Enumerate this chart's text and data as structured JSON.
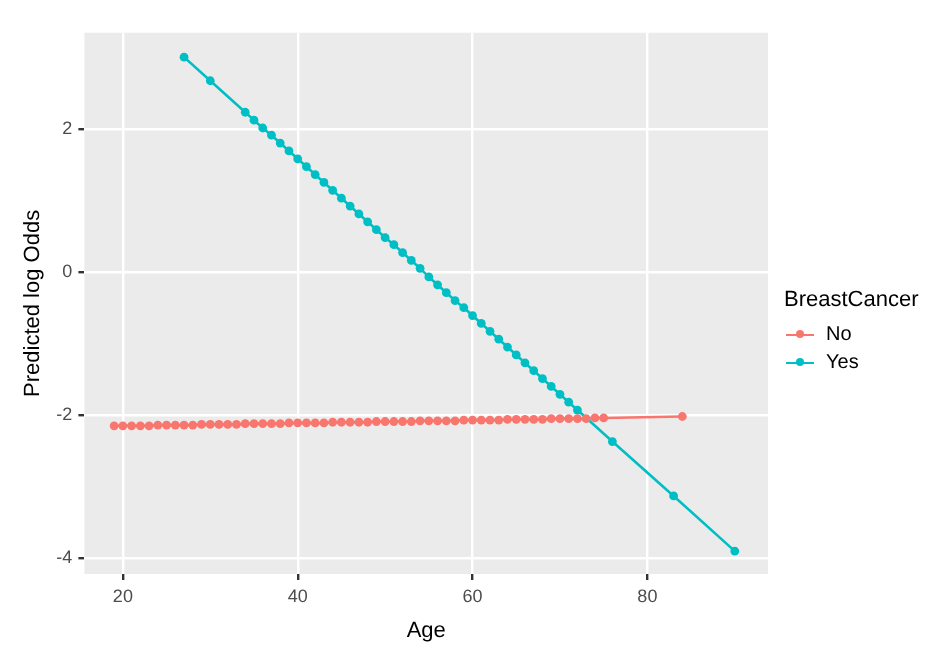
{
  "chart_data": {
    "type": "line",
    "xlabel": "Age",
    "ylabel": "Predicted log Odds",
    "legend_title": "BreastCancer",
    "legend": "right",
    "grid": true,
    "marker": "circle",
    "line_style": "solid",
    "xlim": [
      15.6,
      93.8
    ],
    "xticks": [
      20,
      40,
      60,
      80
    ],
    "ylim": [
      -4.22,
      3.34
    ],
    "yticks": [
      -4,
      -2,
      0,
      2
    ],
    "series": [
      {
        "name": "No",
        "color": "#f8766d",
        "x": [
          19,
          20,
          21,
          22,
          23,
          24,
          25,
          26,
          27,
          28,
          29,
          30,
          31,
          32,
          33,
          34,
          35,
          36,
          37,
          38,
          39,
          40,
          41,
          42,
          43,
          44,
          45,
          46,
          47,
          48,
          49,
          50,
          51,
          52,
          53,
          54,
          55,
          56,
          57,
          58,
          59,
          60,
          61,
          62,
          63,
          64,
          65,
          66,
          67,
          68,
          69,
          70,
          71,
          72,
          73,
          74,
          75,
          84
        ],
        "values": [
          -2.15,
          -2.15,
          -2.15,
          -2.15,
          -2.15,
          -2.14,
          -2.14,
          -2.14,
          -2.14,
          -2.14,
          -2.13,
          -2.13,
          -2.13,
          -2.13,
          -2.13,
          -2.12,
          -2.12,
          -2.12,
          -2.12,
          -2.12,
          -2.11,
          -2.11,
          -2.11,
          -2.11,
          -2.11,
          -2.1,
          -2.1,
          -2.1,
          -2.1,
          -2.1,
          -2.09,
          -2.09,
          -2.09,
          -2.09,
          -2.09,
          -2.08,
          -2.08,
          -2.08,
          -2.08,
          -2.08,
          -2.07,
          -2.07,
          -2.07,
          -2.07,
          -2.07,
          -2.06,
          -2.06,
          -2.06,
          -2.06,
          -2.06,
          -2.05,
          -2.05,
          -2.05,
          -2.05,
          -2.05,
          -2.04,
          -2.04,
          -2.02
        ]
      },
      {
        "name": "Yes",
        "color": "#00bfc4",
        "x": [
          27,
          30,
          34,
          35,
          36,
          37,
          38,
          39,
          40,
          41,
          42,
          43,
          44,
          45,
          46,
          47,
          48,
          49,
          50,
          51,
          52,
          53,
          54,
          55,
          56,
          57,
          58,
          59,
          60,
          61,
          62,
          63,
          64,
          65,
          66,
          67,
          68,
          69,
          70,
          71,
          72,
          76,
          83,
          90
        ],
        "values": [
          3.0,
          2.67,
          2.23,
          2.12,
          2.01,
          1.91,
          1.8,
          1.69,
          1.58,
          1.47,
          1.36,
          1.25,
          1.14,
          1.03,
          0.92,
          0.81,
          0.7,
          0.59,
          0.48,
          0.38,
          0.27,
          0.16,
          0.05,
          -0.07,
          -0.18,
          -0.29,
          -0.4,
          -0.5,
          -0.61,
          -0.72,
          -0.83,
          -0.94,
          -1.05,
          -1.16,
          -1.27,
          -1.38,
          -1.49,
          -1.6,
          -1.71,
          -1.82,
          -1.93,
          -2.37,
          -3.13,
          -3.9
        ]
      }
    ]
  }
}
